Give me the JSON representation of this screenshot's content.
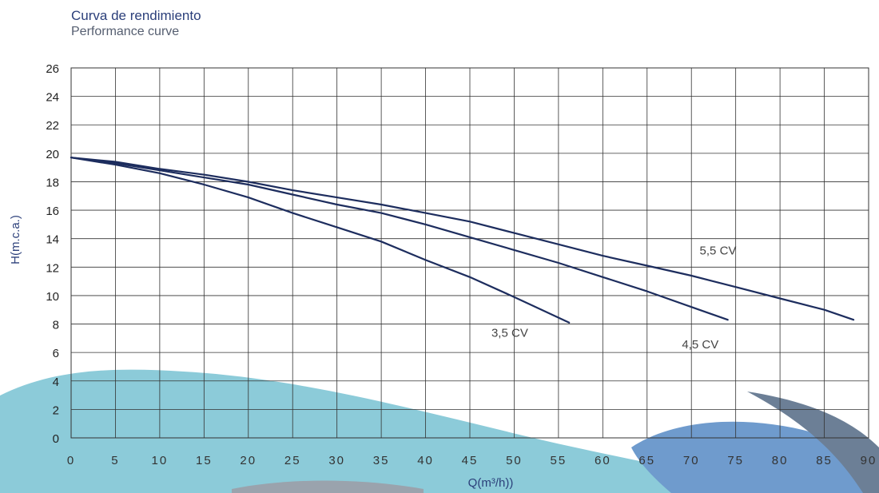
{
  "chart_data": {
    "type": "line",
    "title": "Curva de rendimiento",
    "subtitle": "Performance curve",
    "xlabel": "Q(m³/h))",
    "ylabel": "H(m.c.a.)",
    "xlim": [
      0,
      90
    ],
    "ylim": [
      0,
      26
    ],
    "xticks": [
      0,
      5,
      10,
      15,
      20,
      25,
      30,
      35,
      40,
      45,
      50,
      55,
      60,
      65,
      70,
      75,
      80,
      85,
      90
    ],
    "yticks": [
      0,
      2,
      4,
      6,
      8,
      10,
      12,
      14,
      16,
      18,
      20,
      22,
      24,
      26
    ],
    "grid": true,
    "series": [
      {
        "name": "3,5 CV",
        "x": [
          0,
          5,
          10,
          15,
          20,
          25,
          30,
          35,
          40,
          45,
          50,
          56.2
        ],
        "y": [
          19.7,
          19.2,
          18.6,
          17.8,
          16.9,
          15.8,
          14.8,
          13.8,
          12.5,
          11.3,
          9.9,
          8.1
        ]
      },
      {
        "name": "4,5 CV",
        "x": [
          0,
          5,
          10,
          15,
          20,
          25,
          30,
          35,
          40,
          45,
          50,
          55,
          60,
          65,
          70,
          74.1
        ],
        "y": [
          19.7,
          19.3,
          18.8,
          18.3,
          17.8,
          17.1,
          16.4,
          15.8,
          15.0,
          14.1,
          13.2,
          12.3,
          11.3,
          10.3,
          9.2,
          8.3
        ]
      },
      {
        "name": "5,5 CV",
        "x": [
          0,
          5,
          10,
          15,
          20,
          25,
          30,
          35,
          40,
          45,
          50,
          55,
          60,
          65,
          70,
          75,
          80,
          85,
          88.3
        ],
        "y": [
          19.7,
          19.4,
          18.9,
          18.5,
          18.0,
          17.4,
          16.9,
          16.4,
          15.8,
          15.2,
          14.4,
          13.6,
          12.8,
          12.1,
          11.4,
          10.6,
          9.8,
          9.0,
          8.3
        ]
      }
    ],
    "annotations": [
      "3,5 CV",
      "4,5 CV",
      "5,5 CV"
    ],
    "colors": {
      "curve": "#1d2d5e",
      "grid": "#333333",
      "title": "#2b3f7a",
      "subtitle": "#555e70",
      "swoosh_light": "#8ccbd9",
      "swoosh_blue": "#6f9bcd",
      "swoosh_dark": "#6c7f96"
    }
  }
}
